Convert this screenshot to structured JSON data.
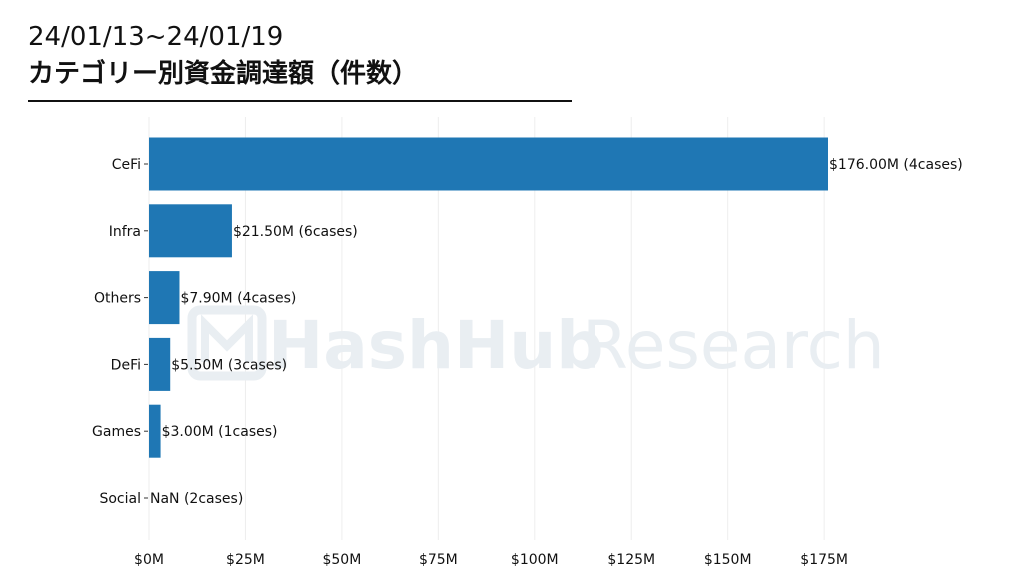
{
  "header": {
    "date_range": "24/01/13~24/01/19",
    "title": "カテゴリー別資金調達額（件数）"
  },
  "watermark": {
    "brand": "HashHub",
    "suffix": "Research"
  },
  "colors": {
    "bar": "#1f77b4",
    "grid": "#eeeeee",
    "text": "#111111",
    "watermark": "#e9eef2"
  },
  "chart_data": {
    "type": "bar",
    "orientation": "horizontal",
    "categories": [
      "CeFi",
      "Infra",
      "Others",
      "DeFi",
      "Games",
      "Social"
    ],
    "values": [
      176.0,
      21.5,
      7.9,
      5.5,
      3.0,
      null
    ],
    "data_labels": [
      "$176.00M (4cases)",
      "$21.50M (6cases)",
      "$7.90M (4cases)",
      "$5.50M (3cases)",
      "$3.00M (1cases)",
      "NaN (2cases)"
    ],
    "x_ticks": [
      0,
      25,
      50,
      75,
      100,
      125,
      150,
      175
    ],
    "x_tick_labels": [
      "$0M",
      "$25M",
      "$50M",
      "$75M",
      "$100M",
      "$125M",
      "$150M",
      "$175M"
    ],
    "xlim": [
      0,
      176
    ],
    "unit": "M USD",
    "grid": "vertical",
    "legend": "none"
  }
}
